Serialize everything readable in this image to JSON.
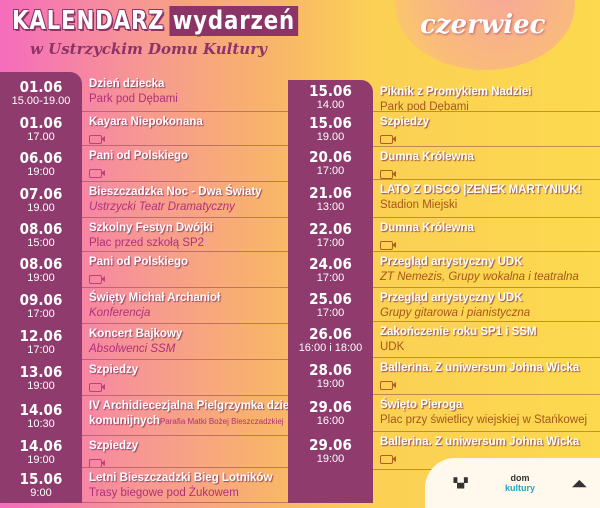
{
  "header": {
    "title_a": "KALENDARZ",
    "title_b": "wydarzeń",
    "subtitle": "w Ustrzyckim Domu Kultury",
    "month": "czerwiec"
  },
  "left": [
    {
      "date": "01.06",
      "time": "15.00-19.00",
      "title": "Dzień dziecka",
      "sub": "Park pod Dębami"
    },
    {
      "date": "01.06",
      "time": "17.00",
      "title": "Kayara Niepokonana",
      "camera": true
    },
    {
      "date": "06.06",
      "time": "19:00",
      "title": "Pani od Polskiego",
      "camera": true
    },
    {
      "date": "07.06",
      "time": "19.00",
      "title": "Bieszczadzka Noc - Dwa Światy",
      "sub": "Ustrzycki Teatr Dramatyczny",
      "italic": true
    },
    {
      "date": "08.06",
      "time": "15:00",
      "title": "Szkolny Festyn Dwójki",
      "sub": "Plac przed szkołą SP2"
    },
    {
      "date": "08.06",
      "time": "19:00",
      "title": "Pani od Polskiego",
      "camera": true
    },
    {
      "date": "09.06",
      "time": "17:00",
      "title": "Święty Michał Archanioł",
      "sub": "Konferencja",
      "italic": true
    },
    {
      "date": "12.06",
      "time": "17:00",
      "title": "Koncert Bajkowy",
      "sub": "Absolwenci SSM",
      "italic": true
    },
    {
      "date": "13.06",
      "time": "19:00",
      "title": "Szpiedzy",
      "camera": true
    },
    {
      "date": "14.06",
      "time": "10:30",
      "title": "IV Archidiecezjalna Pielgrzymka dzieci",
      "title2": "komunijnych",
      "small": "Parafia Matki Bożej Bieszczadzkiej"
    },
    {
      "date": "14.06",
      "time": "19:00",
      "title": "Szpiedzy",
      "camera": true
    },
    {
      "date": "15.06",
      "time": "9:00",
      "title": "Letni Bieszczadzki Bieg Lotników",
      "sub": "Trasy biegowe pod Żukowem"
    }
  ],
  "right": [
    {
      "date": "15.06",
      "time": "14.00",
      "title": "Piknik z Promykiem Nadziei",
      "sub": "Park pod Dębami"
    },
    {
      "date": "15.06",
      "time": "19.00",
      "title": "Szpiedzy",
      "camera": true
    },
    {
      "date": "20.06",
      "time": "17:00",
      "title": "Dumna Królewna",
      "camera": true
    },
    {
      "date": "21.06",
      "time": "13:00",
      "title": "LATO Z DISCO |ZENEK MARTYNIUK!",
      "sub": "Stadion Miejski"
    },
    {
      "date": "22.06",
      "time": "17:00",
      "title": "Dumna Królewna",
      "camera": true
    },
    {
      "date": "24.06",
      "time": "17:00",
      "title": "Przegląd artystyczny UDK",
      "sub": "ZT Nemezis, Grupy wokalna i teatralna",
      "italic": true
    },
    {
      "date": "25.06",
      "time": "17:00",
      "title": "Przegląd artystyczny UDK",
      "sub": "Grupy gitarowa i pianistyczna",
      "italic": true
    },
    {
      "date": "26.06",
      "time": "16:00 i 18:00",
      "title": "Zakończenie roku SP1 i SSM",
      "sub": "UDK"
    },
    {
      "date": "28.06",
      "time": "19:00",
      "title": "Ballerina. Z uniwersum Johna Wicka",
      "camera": true
    },
    {
      "date": "29.06",
      "time": "16:00",
      "title": "Święto Pieroga",
      "sub": "Plac przy świetlicy wiejskiej w Stańkowej"
    },
    {
      "date": "29.06",
      "time": "19:00",
      "title": "Ballerina. Z uniwersum Johna Wicka",
      "camera": true
    }
  ],
  "logos": {
    "dom_a": "dom",
    "dom_b": "kultury"
  },
  "colors": {
    "panel": "#8f3b6e",
    "pink": "#f56cbc",
    "yellow": "#fcd94e"
  }
}
